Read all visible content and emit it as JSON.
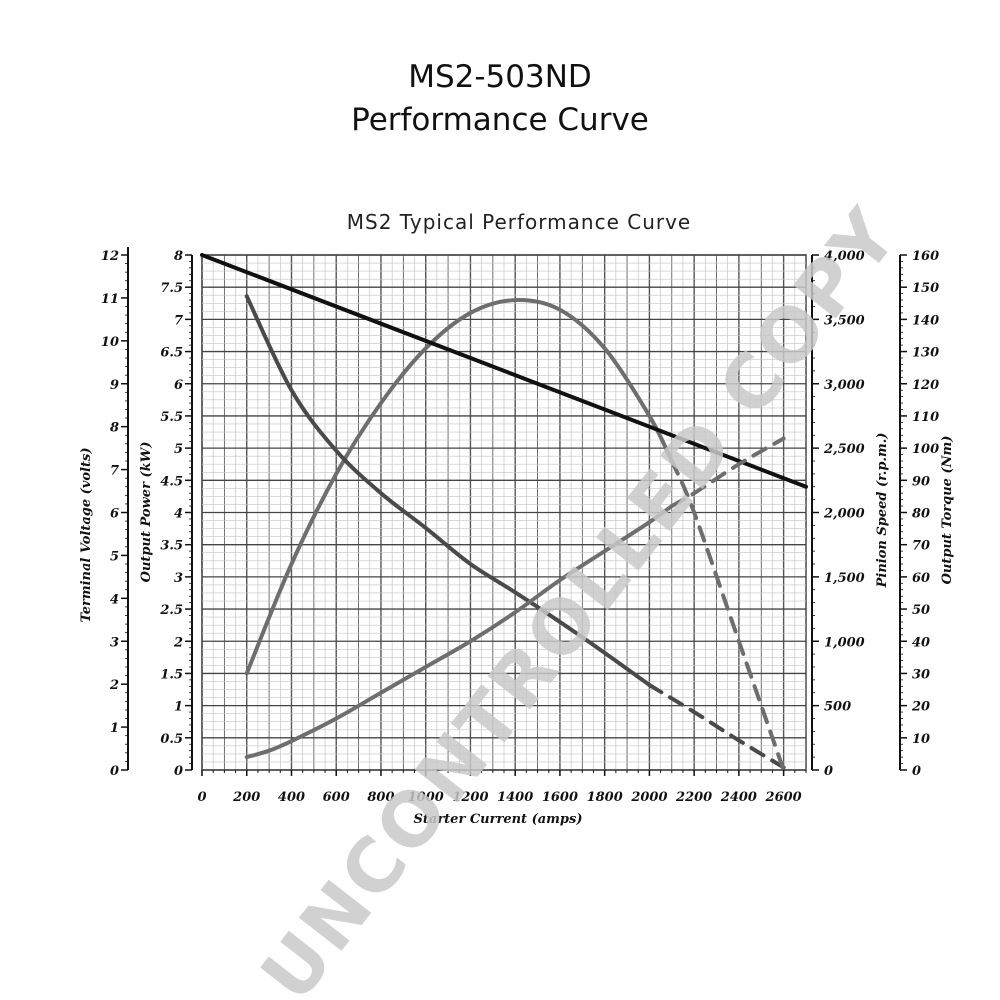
{
  "page": {
    "title_line1": "MS2-503ND",
    "title_line2": "Performance Curve",
    "watermark": "UNCONTROLLED COPY"
  },
  "chart_data": {
    "type": "line",
    "title": "MS2 Typical Performance Curve",
    "xlabel": "Starter Current  (amps)",
    "xlim": [
      0,
      2700
    ],
    "x_ticks": [
      "0",
      "200",
      "400",
      "600",
      "800",
      "1000",
      "1200",
      "1400",
      "1600",
      "1800",
      "2000",
      "2200",
      "2400",
      "2600"
    ],
    "axes": {
      "output_power": {
        "label": "Output Power (kW)",
        "range": [
          0,
          8
        ],
        "ticks": [
          "0",
          "0.5",
          "1",
          "1.5",
          "2",
          "2.5",
          "3",
          "3.5",
          "4",
          "4.5",
          "5",
          "5.5",
          "6",
          "6.5",
          "7",
          "7.5",
          "8"
        ]
      },
      "terminal_voltage": {
        "label": "Terminal Voltage (volts)",
        "range": [
          0,
          12
        ],
        "ticks": [
          "0",
          "1",
          "2",
          "3",
          "4",
          "5",
          "6",
          "7",
          "8",
          "9",
          "10",
          "11",
          "12"
        ]
      },
      "pinion_speed": {
        "label": "Pinion Speed (r.p.m.)",
        "range": [
          0,
          4000
        ],
        "ticks": [
          "0",
          "500",
          "1,000",
          "1,500",
          "2,000",
          "2,500",
          "3,000",
          "3,500",
          "4,000"
        ]
      },
      "output_torque": {
        "label": "Output Torque (Nm)",
        "range": [
          0,
          160
        ],
        "ticks": [
          "0",
          "10",
          "20",
          "30",
          "40",
          "50",
          "60",
          "70",
          "80",
          "90",
          "100",
          "110",
          "120",
          "130",
          "140",
          "150",
          "160"
        ]
      }
    },
    "series": [
      {
        "axis": "output_power",
        "color": "#6e6e6e",
        "style": "solid",
        "x": [
          200,
          400,
          600,
          800,
          1000,
          1200,
          1400,
          1600,
          1800,
          2000,
          2100
        ],
        "y": [
          1.5,
          3.2,
          4.6,
          5.7,
          6.55,
          7.1,
          7.3,
          7.15,
          6.55,
          5.5,
          4.8
        ]
      },
      {
        "axis": "terminal_voltage",
        "color": "#111111",
        "style": "solid",
        "x": [
          0,
          2700
        ],
        "y": [
          12.0,
          6.6
        ]
      },
      {
        "axis": "pinion_speed",
        "color": "#4a4a4a",
        "style": "solid",
        "x": [
          200,
          400,
          600,
          800,
          1000,
          1200,
          1400,
          1600,
          1800,
          2000
        ],
        "y": [
          3680,
          2950,
          2480,
          2150,
          1880,
          1600,
          1380,
          1150,
          910,
          660
        ]
      },
      {
        "axis": "pinion_speed",
        "color": "#4a4a4a",
        "style": "dashed",
        "x": [
          2000,
          2200,
          2400,
          2600
        ],
        "y": [
          660,
          450,
          230,
          20
        ]
      },
      {
        "axis": "output_torque",
        "color": "#6e6e6e",
        "style": "solid",
        "x": [
          200,
          300,
          400,
          600,
          800,
          1000,
          1200,
          1400,
          1600,
          1800,
          2000,
          2100
        ],
        "y": [
          4,
          6,
          9,
          16,
          24,
          32,
          40,
          49,
          59,
          68,
          77,
          82
        ]
      },
      {
        "axis": "output_torque",
        "color": "#6e6e6e",
        "style": "dashed",
        "x": [
          2100,
          2200,
          2400,
          2600
        ],
        "y": [
          82,
          86,
          95,
          103
        ]
      },
      {
        "axis": "output_power",
        "color": "#6e6e6e",
        "style": "dashed",
        "x": [
          2100,
          2200,
          2400,
          2600
        ],
        "y": [
          4.8,
          4.0,
          2.0,
          0
        ]
      }
    ]
  }
}
